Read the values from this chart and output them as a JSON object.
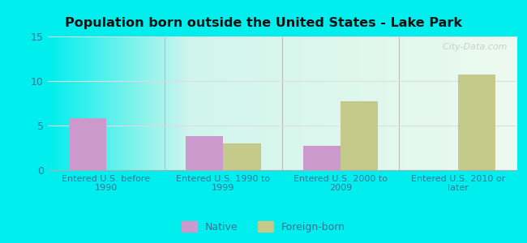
{
  "title": "Population born outside the United States - Lake Park",
  "categories": [
    "Entered U.S. before\n1990",
    "Entered U.S. 1990 to\n1999",
    "Entered U.S. 2000 to\n2009",
    "Entered U.S. 2010 or\nlater"
  ],
  "native_values": [
    5.8,
    3.8,
    2.7,
    0
  ],
  "foreign_values": [
    0,
    3.0,
    7.7,
    10.7
  ],
  "native_color": "#cc99cc",
  "foreign_color": "#c5c98a",
  "ylim": [
    0,
    15
  ],
  "yticks": [
    0,
    5,
    10,
    15
  ],
  "bar_width": 0.32,
  "background_outer": "#00eeee",
  "plot_bg_left": "#a8e8e0",
  "plot_bg_center": "#edfaef",
  "grid_color": "#dddddd",
  "axis_label_color": "#337799",
  "title_color": "#111111",
  "legend_native": "Native",
  "legend_foreign": "Foreign-born",
  "watermark": "  City-Data.com"
}
